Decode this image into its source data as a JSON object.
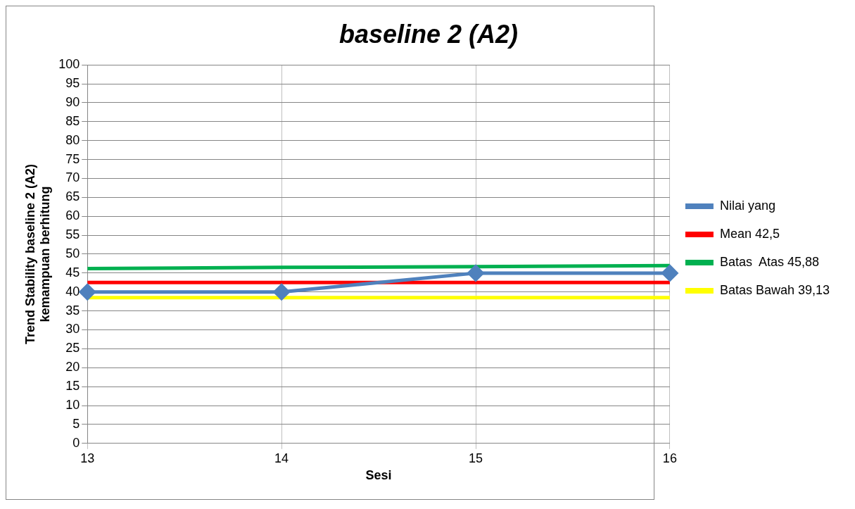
{
  "chart_data": {
    "type": "line",
    "title": "baseline 2 (A2)",
    "xlabel": "Sesi",
    "ylabel": "Trend Stability baseline 2 (A2)\nkemampuan berhitung",
    "categories": [
      "13",
      "14",
      "15",
      "16"
    ],
    "series": [
      {
        "name": "Nilai yang",
        "color": "#4f81bd",
        "values": [
          40,
          40,
          45,
          45
        ],
        "marker": "diamond"
      },
      {
        "name": "Mean 42,5",
        "color": "#ff0000",
        "values": [
          42.5,
          42.5,
          42.5,
          42.5
        ],
        "marker": "none"
      },
      {
        "name": "Batas  Atas 45,88",
        "color": "#00b050",
        "values": [
          46.2,
          46.5,
          46.7,
          47
        ],
        "marker": "none"
      },
      {
        "name": "Batas Bawah 39,13",
        "color": "#ffff00",
        "values": [
          38.5,
          38.5,
          38.5,
          38.5
        ],
        "marker": "none"
      }
    ],
    "ylim": [
      0,
      100
    ],
    "yticks": [
      0,
      5,
      10,
      15,
      20,
      25,
      30,
      35,
      40,
      45,
      50,
      55,
      60,
      65,
      70,
      75,
      80,
      85,
      90,
      95,
      100
    ],
    "grid": true,
    "legend": "right",
    "line_style": "solid"
  }
}
